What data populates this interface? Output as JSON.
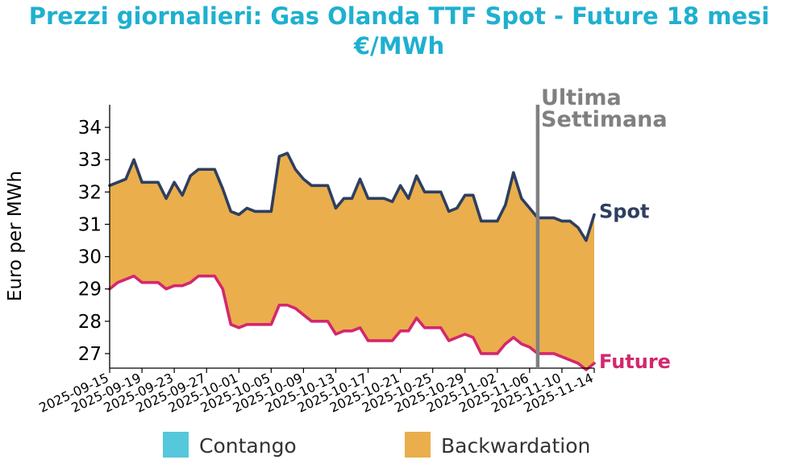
{
  "chart_data": {
    "type": "area",
    "title_line1": "Prezzi giornalieri: Gas Olanda TTF Spot - Future 18 mesi",
    "title_line2": "€/MWh",
    "ylabel": "Euro per MWh",
    "xlabel": "",
    "ylim": [
      26.55,
      34.7
    ],
    "yticks": [
      27,
      28,
      29,
      30,
      31,
      32,
      33,
      34
    ],
    "xlim": [
      "2025-09-15",
      "2025-11-14"
    ],
    "xticks": [
      "2025-09-15",
      "2025-09-19",
      "2025-09-23",
      "2025-09-27",
      "2025-10-01",
      "2025-10-05",
      "2025-10-09",
      "2025-10-13",
      "2025-10-17",
      "2025-10-21",
      "2025-10-25",
      "2025-10-29",
      "2025-11-02",
      "2025-11-06",
      "2025-11-10",
      "2025-11-14"
    ],
    "grid": false,
    "annotation": {
      "date": "2025-11-07",
      "line1": "Ultima",
      "line2": "Settimana",
      "color": "#808080"
    },
    "colors": {
      "spot": "#2e3f5f",
      "future": "#d4276e",
      "contango": "#55c8dc",
      "backwardation": "#eaae4c"
    },
    "legend": {
      "placement": "bottom",
      "items": [
        {
          "label": "Contango",
          "color": "#55c8dc"
        },
        {
          "label": "Backwardation",
          "color": "#eaae4c"
        }
      ]
    },
    "series": [
      {
        "name": "Spot",
        "points": [
          [
            "2025-09-15",
            32.2
          ],
          [
            "2025-09-16",
            32.3
          ],
          [
            "2025-09-17",
            32.4
          ],
          [
            "2025-09-18",
            33.0
          ],
          [
            "2025-09-19",
            32.3
          ],
          [
            "2025-09-20",
            32.3
          ],
          [
            "2025-09-21",
            32.3
          ],
          [
            "2025-09-22",
            31.8
          ],
          [
            "2025-09-23",
            32.3
          ],
          [
            "2025-09-24",
            31.9
          ],
          [
            "2025-09-25",
            32.5
          ],
          [
            "2025-09-26",
            32.7
          ],
          [
            "2025-09-27",
            32.7
          ],
          [
            "2025-09-28",
            32.7
          ],
          [
            "2025-09-29",
            32.1
          ],
          [
            "2025-09-30",
            31.4
          ],
          [
            "2025-10-01",
            31.3
          ],
          [
            "2025-10-02",
            31.5
          ],
          [
            "2025-10-03",
            31.4
          ],
          [
            "2025-10-04",
            31.4
          ],
          [
            "2025-10-05",
            31.4
          ],
          [
            "2025-10-06",
            33.1
          ],
          [
            "2025-10-07",
            33.2
          ],
          [
            "2025-10-08",
            32.7
          ],
          [
            "2025-10-09",
            32.4
          ],
          [
            "2025-10-10",
            32.2
          ],
          [
            "2025-10-11",
            32.2
          ],
          [
            "2025-10-12",
            32.2
          ],
          [
            "2025-10-13",
            31.5
          ],
          [
            "2025-10-14",
            31.8
          ],
          [
            "2025-10-15",
            31.8
          ],
          [
            "2025-10-16",
            32.4
          ],
          [
            "2025-10-17",
            31.8
          ],
          [
            "2025-10-18",
            31.8
          ],
          [
            "2025-10-19",
            31.8
          ],
          [
            "2025-10-20",
            31.7
          ],
          [
            "2025-10-21",
            32.2
          ],
          [
            "2025-10-22",
            31.8
          ],
          [
            "2025-10-23",
            32.5
          ],
          [
            "2025-10-24",
            32.0
          ],
          [
            "2025-10-25",
            32.0
          ],
          [
            "2025-10-26",
            32.0
          ],
          [
            "2025-10-27",
            31.4
          ],
          [
            "2025-10-28",
            31.5
          ],
          [
            "2025-10-29",
            31.9
          ],
          [
            "2025-10-30",
            31.9
          ],
          [
            "2025-10-31",
            31.1
          ],
          [
            "2025-11-01",
            31.1
          ],
          [
            "2025-11-02",
            31.1
          ],
          [
            "2025-11-03",
            31.6
          ],
          [
            "2025-11-04",
            32.6
          ],
          [
            "2025-11-05",
            31.8
          ],
          [
            "2025-11-06",
            31.5
          ],
          [
            "2025-11-07",
            31.2
          ],
          [
            "2025-11-08",
            31.2
          ],
          [
            "2025-11-09",
            31.2
          ],
          [
            "2025-11-10",
            31.1
          ],
          [
            "2025-11-11",
            31.1
          ],
          [
            "2025-11-12",
            30.9
          ],
          [
            "2025-11-13",
            30.5
          ],
          [
            "2025-11-14",
            31.3
          ]
        ]
      },
      {
        "name": "Future",
        "points": [
          [
            "2025-09-15",
            29.0
          ],
          [
            "2025-09-16",
            29.2
          ],
          [
            "2025-09-17",
            29.3
          ],
          [
            "2025-09-18",
            29.4
          ],
          [
            "2025-09-19",
            29.2
          ],
          [
            "2025-09-20",
            29.2
          ],
          [
            "2025-09-21",
            29.2
          ],
          [
            "2025-09-22",
            29.0
          ],
          [
            "2025-09-23",
            29.1
          ],
          [
            "2025-09-24",
            29.1
          ],
          [
            "2025-09-25",
            29.2
          ],
          [
            "2025-09-26",
            29.4
          ],
          [
            "2025-09-27",
            29.4
          ],
          [
            "2025-09-28",
            29.4
          ],
          [
            "2025-09-29",
            29.0
          ],
          [
            "2025-09-30",
            27.9
          ],
          [
            "2025-10-01",
            27.8
          ],
          [
            "2025-10-02",
            27.9
          ],
          [
            "2025-10-03",
            27.9
          ],
          [
            "2025-10-04",
            27.9
          ],
          [
            "2025-10-05",
            27.9
          ],
          [
            "2025-10-06",
            28.5
          ],
          [
            "2025-10-07",
            28.5
          ],
          [
            "2025-10-08",
            28.4
          ],
          [
            "2025-10-09",
            28.2
          ],
          [
            "2025-10-10",
            28.0
          ],
          [
            "2025-10-11",
            28.0
          ],
          [
            "2025-10-12",
            28.0
          ],
          [
            "2025-10-13",
            27.6
          ],
          [
            "2025-10-14",
            27.7
          ],
          [
            "2025-10-15",
            27.7
          ],
          [
            "2025-10-16",
            27.8
          ],
          [
            "2025-10-17",
            27.4
          ],
          [
            "2025-10-18",
            27.4
          ],
          [
            "2025-10-19",
            27.4
          ],
          [
            "2025-10-20",
            27.4
          ],
          [
            "2025-10-21",
            27.7
          ],
          [
            "2025-10-22",
            27.7
          ],
          [
            "2025-10-23",
            28.1
          ],
          [
            "2025-10-24",
            27.8
          ],
          [
            "2025-10-25",
            27.8
          ],
          [
            "2025-10-26",
            27.8
          ],
          [
            "2025-10-27",
            27.4
          ],
          [
            "2025-10-28",
            27.5
          ],
          [
            "2025-10-29",
            27.6
          ],
          [
            "2025-10-30",
            27.5
          ],
          [
            "2025-10-31",
            27.0
          ],
          [
            "2025-11-01",
            27.0
          ],
          [
            "2025-11-02",
            27.0
          ],
          [
            "2025-11-03",
            27.3
          ],
          [
            "2025-11-04",
            27.5
          ],
          [
            "2025-11-05",
            27.3
          ],
          [
            "2025-11-06",
            27.2
          ],
          [
            "2025-11-07",
            27.0
          ],
          [
            "2025-11-08",
            27.0
          ],
          [
            "2025-11-09",
            27.0
          ],
          [
            "2025-11-10",
            26.9
          ],
          [
            "2025-11-11",
            26.8
          ],
          [
            "2025-11-12",
            26.7
          ],
          [
            "2025-11-13",
            26.5
          ],
          [
            "2025-11-14",
            26.7
          ]
        ]
      }
    ]
  }
}
